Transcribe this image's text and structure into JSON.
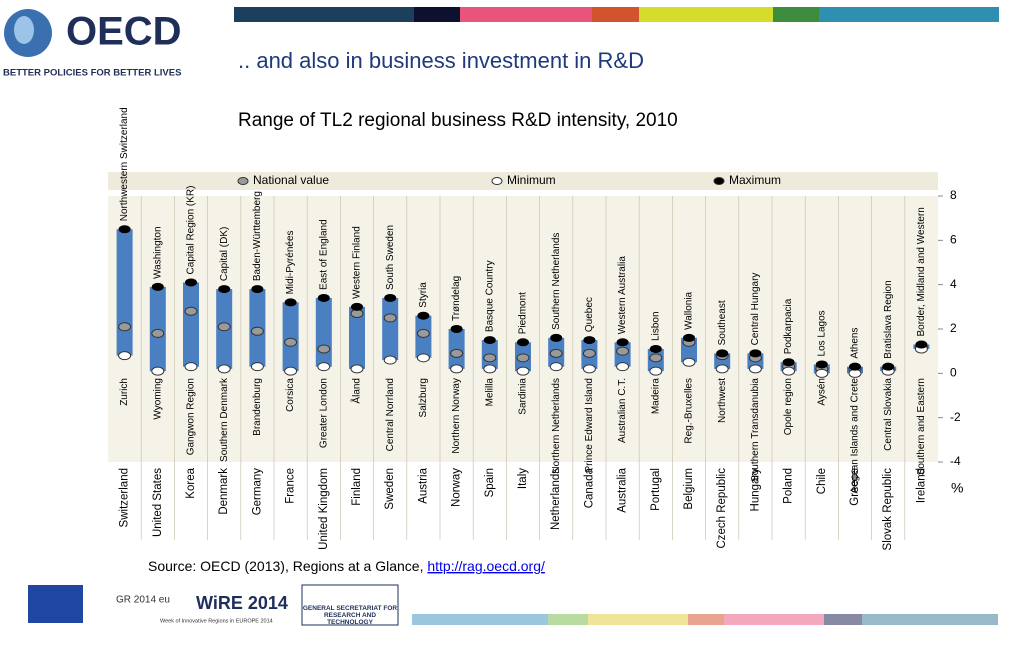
{
  "header": {
    "logo": "OECD",
    "tagline": "BETTER POLICIES FOR BETTER LIVES",
    "title": ".. and also in business investment in R&D"
  },
  "chart_data": {
    "type": "range",
    "title": "Range of TL2 regional business R&D intensity, 2010",
    "categories": [
      "Switzerland",
      "United States",
      "Korea",
      "Denmark",
      "Germany",
      "France",
      "United Kingdom",
      "Finland",
      "Sweden",
      "Austria",
      "Norway",
      "Spain",
      "Italy",
      "Netherlands",
      "Canada",
      "Australia",
      "Portugal",
      "Belgium",
      "Czech Republic",
      "Hungary",
      "Poland",
      "Chile",
      "Greece",
      "Slovak Republic",
      "Ireland"
    ],
    "series": [
      {
        "name": "National value",
        "color": "#9a9a9a",
        "values": [
          2.1,
          1.8,
          2.8,
          2.1,
          1.9,
          1.4,
          1.1,
          2.7,
          2.5,
          1.8,
          0.9,
          0.7,
          0.7,
          0.9,
          0.9,
          1.0,
          0.7,
          1.4,
          0.8,
          0.7,
          0.3,
          0.2,
          0.2,
          0.2,
          1.2
        ]
      },
      {
        "name": "Minimum",
        "color": "#ffffff",
        "values": [
          0.8,
          0.1,
          0.3,
          0.2,
          0.3,
          0.1,
          0.3,
          0.2,
          0.6,
          0.7,
          0.2,
          0.2,
          0.1,
          0.3,
          0.2,
          0.3,
          0.1,
          0.5,
          0.2,
          0.2,
          0.1,
          0.0,
          0.0,
          0.1,
          1.1
        ],
        "regions": [
          "Zurich",
          "Wyoming",
          "Gangwon Region",
          "Southern Denmark",
          "Brandenburg",
          "Corsica",
          "Greater London",
          "Åland",
          "Central Norrland",
          "Salzburg",
          "Northern Norway",
          "Melilla",
          "Sardinia",
          "Northern Netherlands",
          "Prince Edward Island",
          "Australian C.T.",
          "Madeira",
          "Reg.-Bruxelles",
          "Northwest",
          "Southern Transdanubia",
          "Opole region",
          "Aysén",
          "Aegean Islands and Crete",
          "Central Slovakia",
          "Southern and Eastern"
        ]
      },
      {
        "name": "Maximum",
        "color": "#000000",
        "values": [
          6.5,
          3.9,
          4.1,
          3.8,
          3.8,
          3.2,
          3.4,
          3.0,
          3.4,
          2.6,
          2.0,
          1.5,
          1.4,
          1.6,
          1.5,
          1.4,
          1.1,
          1.6,
          0.9,
          0.9,
          0.5,
          0.4,
          0.3,
          0.3,
          1.3
        ],
        "regions": [
          "Northwestern Switzerland",
          "Washington",
          "Capital Region (KR)",
          "Capital (DK)",
          "Baden-Württemberg",
          "Midi-Pyrénées",
          "East of England",
          "Western Finland",
          "South Sweden",
          "Styria",
          "Trøndelag",
          "Basque Country",
          "Piedmont",
          "Southern Netherlands",
          "Quebec",
          "Western Australia",
          "Lisbon",
          "Wallonia",
          "Southeast",
          "Central Hungary",
          "Podkarpacia",
          "Los Lagos",
          "Athens",
          "Bratislava Region",
          "Border, Midland and Western"
        ]
      }
    ],
    "bar_color": "#4a7fc1",
    "ylim": [
      -4,
      8
    ],
    "yticks": [
      -4,
      -2,
      0,
      2,
      4,
      6,
      8
    ],
    "unit": "%"
  },
  "source": {
    "text": "Source: OECD (2013), Regions at a Glance, ",
    "link": "http://rag.oecd.org/"
  },
  "footer": {
    "gr": "GR 2014 eu",
    "wire": "WiRE 2014",
    "wire_sub": "Week of Innovative Regions in EUROPE 2014",
    "gsrt": "GENERAL SECRETARIAT FOR RESEARCH AND TECHNOLOGY"
  }
}
